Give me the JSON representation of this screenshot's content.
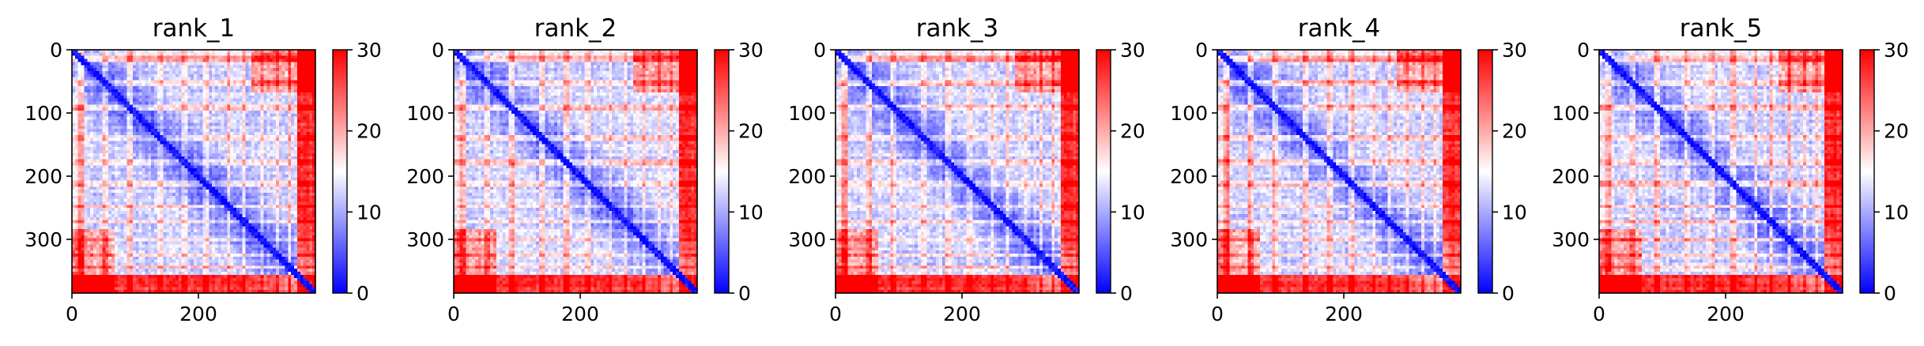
{
  "figure": {
    "panels": [
      {
        "title": "rank_1"
      },
      {
        "title": "rank_2"
      },
      {
        "title": "rank_3"
      },
      {
        "title": "rank_4"
      },
      {
        "title": "rank_5"
      }
    ]
  },
  "chart_data": [
    {
      "type": "heatmap",
      "title": "rank_1",
      "xlabel": "",
      "ylabel": "",
      "xlim": [
        0,
        385
      ],
      "ylim": [
        385,
        0
      ],
      "xticks": [
        0,
        200
      ],
      "yticks": [
        0,
        100,
        200,
        300
      ],
      "colorbar": {
        "cmap": "bwr",
        "range": [
          0,
          30
        ],
        "ticks": [
          0,
          10,
          20,
          30
        ]
      },
      "grid": false
    },
    {
      "type": "heatmap",
      "title": "rank_2",
      "xlabel": "",
      "ylabel": "",
      "xlim": [
        0,
        385
      ],
      "ylim": [
        385,
        0
      ],
      "xticks": [
        0,
        200
      ],
      "yticks": [
        0,
        100,
        200,
        300
      ],
      "colorbar": {
        "cmap": "bwr",
        "range": [
          0,
          30
        ],
        "ticks": [
          0,
          10,
          20,
          30
        ]
      },
      "grid": false
    },
    {
      "type": "heatmap",
      "title": "rank_3",
      "xlabel": "",
      "ylabel": "",
      "xlim": [
        0,
        385
      ],
      "ylim": [
        385,
        0
      ],
      "xticks": [
        0,
        200
      ],
      "yticks": [
        0,
        100,
        200,
        300
      ],
      "colorbar": {
        "cmap": "bwr",
        "range": [
          0,
          30
        ],
        "ticks": [
          0,
          10,
          20,
          30
        ]
      },
      "grid": false
    },
    {
      "type": "heatmap",
      "title": "rank_4",
      "xlabel": "",
      "ylabel": "",
      "xlim": [
        0,
        385
      ],
      "ylim": [
        385,
        0
      ],
      "xticks": [
        0,
        200
      ],
      "yticks": [
        0,
        100,
        200,
        300
      ],
      "colorbar": {
        "cmap": "bwr",
        "range": [
          0,
          30
        ],
        "ticks": [
          0,
          10,
          20,
          30
        ]
      },
      "grid": false
    },
    {
      "type": "heatmap",
      "title": "rank_5",
      "xlabel": "",
      "ylabel": "",
      "xlim": [
        0,
        385
      ],
      "ylim": [
        385,
        0
      ],
      "xticks": [
        0,
        200
      ],
      "yticks": [
        0,
        100,
        200,
        300
      ],
      "colorbar": {
        "cmap": "bwr",
        "range": [
          0,
          30
        ],
        "ticks": [
          0,
          10,
          20,
          30
        ]
      },
      "grid": false
    }
  ],
  "colors": {
    "low": "#0000ff",
    "mid": "#ffffff",
    "high": "#ff0000",
    "axis": "#000000"
  }
}
